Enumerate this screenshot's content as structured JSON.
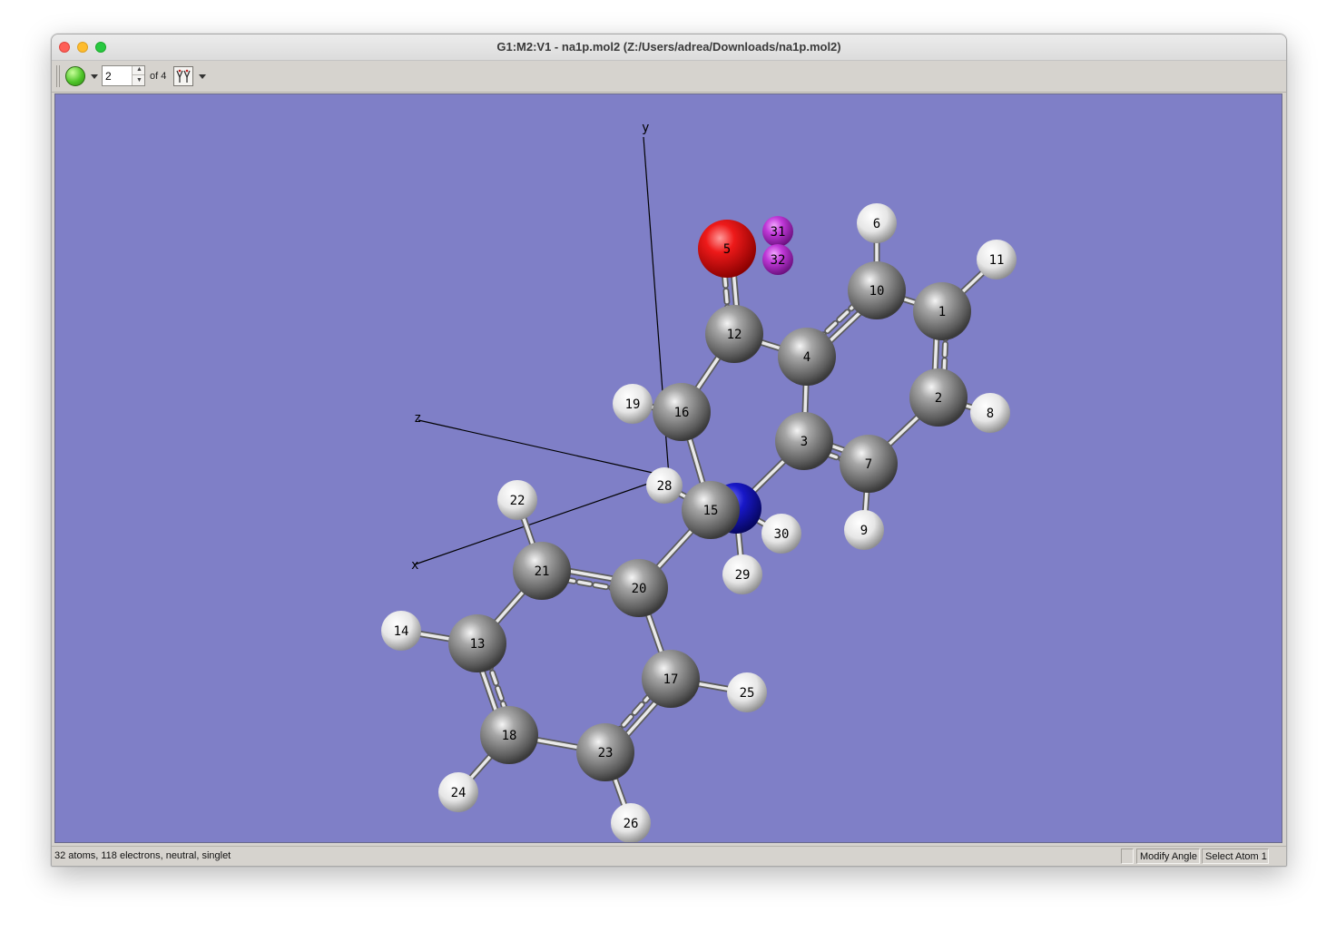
{
  "window": {
    "title": "G1:M2:V1 - na1p.mol2 (Z:/Users/adrea/Downloads/na1p.mol2)"
  },
  "toolbar": {
    "model_icon": "green-sphere-icon",
    "model_value": "2",
    "of_label": "of 4",
    "animation_icon": "normal-modes-icon"
  },
  "viewport": {
    "background_color": "#7f7fc7",
    "axes": {
      "x_label": "x",
      "y_label": "y",
      "z_label": "z"
    }
  },
  "atoms": [
    {
      "id": "1",
      "element": "C"
    },
    {
      "id": "2",
      "element": "C"
    },
    {
      "id": "3",
      "element": "C"
    },
    {
      "id": "4",
      "element": "C"
    },
    {
      "id": "5",
      "element": "O"
    },
    {
      "id": "6",
      "element": "H"
    },
    {
      "id": "7",
      "element": "C"
    },
    {
      "id": "8",
      "element": "H"
    },
    {
      "id": "9",
      "element": "H"
    },
    {
      "id": "10",
      "element": "C"
    },
    {
      "id": "11",
      "element": "H"
    },
    {
      "id": "12",
      "element": "C"
    },
    {
      "id": "13",
      "element": "C"
    },
    {
      "id": "14",
      "element": "H"
    },
    {
      "id": "15",
      "element": "C"
    },
    {
      "id": "16",
      "element": "C"
    },
    {
      "id": "17",
      "element": "C"
    },
    {
      "id": "18",
      "element": "C"
    },
    {
      "id": "19",
      "element": "H"
    },
    {
      "id": "20",
      "element": "C"
    },
    {
      "id": "21",
      "element": "C"
    },
    {
      "id": "22",
      "element": "H"
    },
    {
      "id": "23",
      "element": "C"
    },
    {
      "id": "24",
      "element": "H"
    },
    {
      "id": "25",
      "element": "H"
    },
    {
      "id": "26",
      "element": "H"
    },
    {
      "id": "28",
      "element": "H"
    },
    {
      "id": "29",
      "element": "H"
    },
    {
      "id": "30",
      "element": "H"
    },
    {
      "id": "31",
      "element": "Na"
    },
    {
      "id": "32",
      "element": "Na"
    }
  ],
  "element_colors": {
    "C": "#8c8c8c",
    "H": "#f2f2f2",
    "O": "#ff0d0d",
    "N": "#1a1ad0",
    "Na": "#c43bd6"
  },
  "statusbar": {
    "summary": "32 atoms, 118 electrons, neutral, singlet",
    "mode": "Modify Angle",
    "prompt": "Select Atom 1"
  }
}
